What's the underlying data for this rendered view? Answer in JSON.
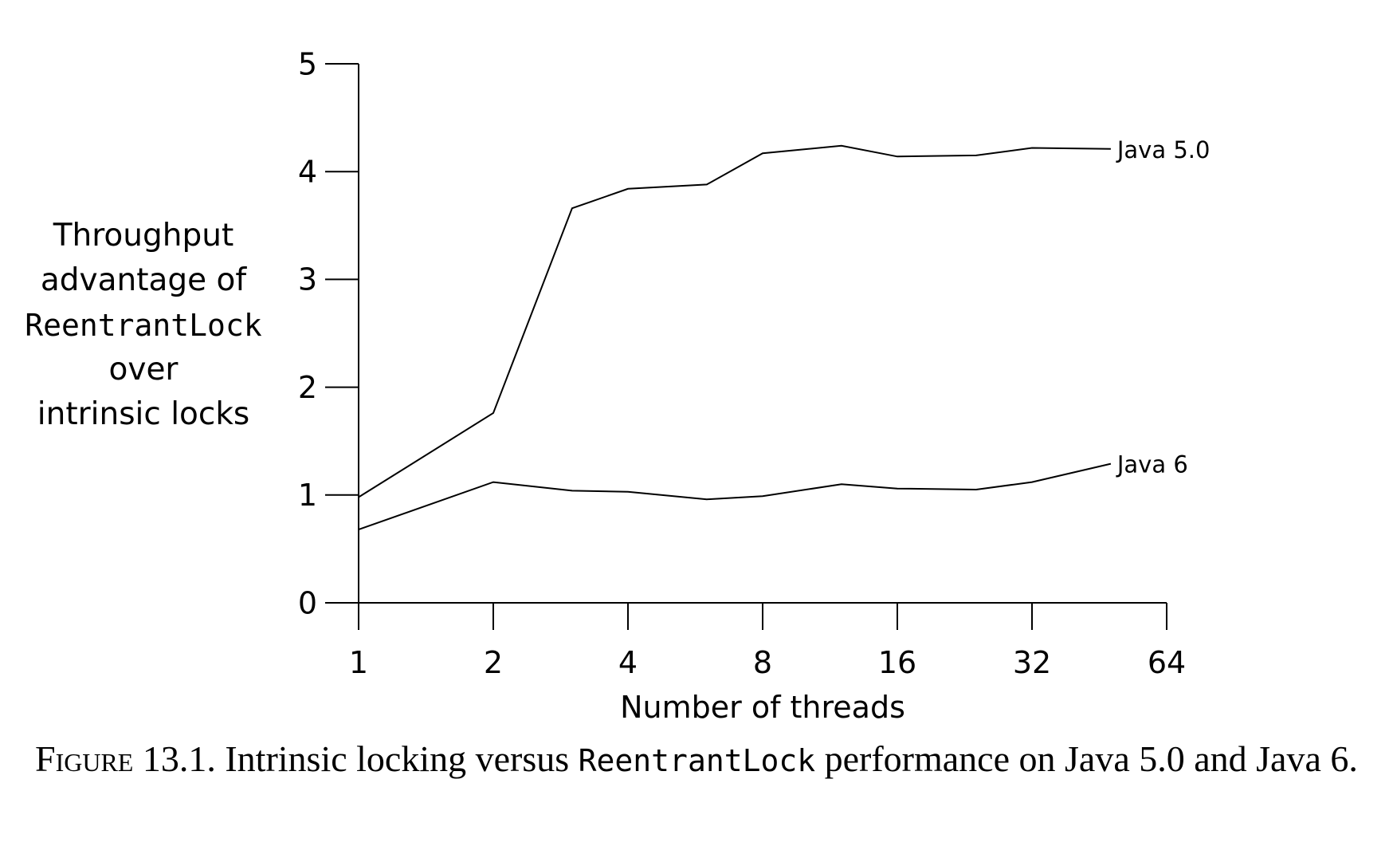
{
  "chart_data": {
    "type": "line",
    "xlabel": "Number of threads",
    "ylabel_lines": [
      "Throughput",
      "advantage of",
      "ReentrantLock",
      "over",
      "intrinsic locks"
    ],
    "x_scale": "log2",
    "x_ticks": [
      1,
      2,
      4,
      8,
      16,
      32,
      64
    ],
    "x_tick_labels": [
      "1",
      "2",
      "4",
      "8",
      "16",
      "32",
      "64"
    ],
    "xlim": [
      1,
      64
    ],
    "y_ticks": [
      0,
      1,
      2,
      3,
      4,
      5
    ],
    "y_tick_labels": [
      "0",
      "1",
      "2",
      "3",
      "4",
      "5"
    ],
    "ylim": [
      0,
      5
    ],
    "grid": false,
    "series": [
      {
        "name": "Java 5.0",
        "x": [
          1,
          2,
          3,
          4,
          6,
          8,
          12,
          16,
          24,
          32,
          48
        ],
        "values": [
          0.98,
          1.76,
          3.66,
          3.84,
          3.88,
          4.17,
          4.24,
          4.14,
          4.15,
          4.22,
          4.21
        ]
      },
      {
        "name": "Java 6",
        "x": [
          1,
          2,
          3,
          4,
          6,
          8,
          12,
          16,
          24,
          32,
          48
        ],
        "values": [
          0.68,
          1.12,
          1.04,
          1.03,
          0.96,
          0.99,
          1.1,
          1.06,
          1.05,
          1.12,
          1.29
        ]
      }
    ]
  },
  "caption": {
    "figure_label": "Figure 13.1.",
    "text_before": "Intrinsic locking versus",
    "code": "ReentrantLock",
    "text_after": "performance on Java 5.0 and Java 6."
  }
}
